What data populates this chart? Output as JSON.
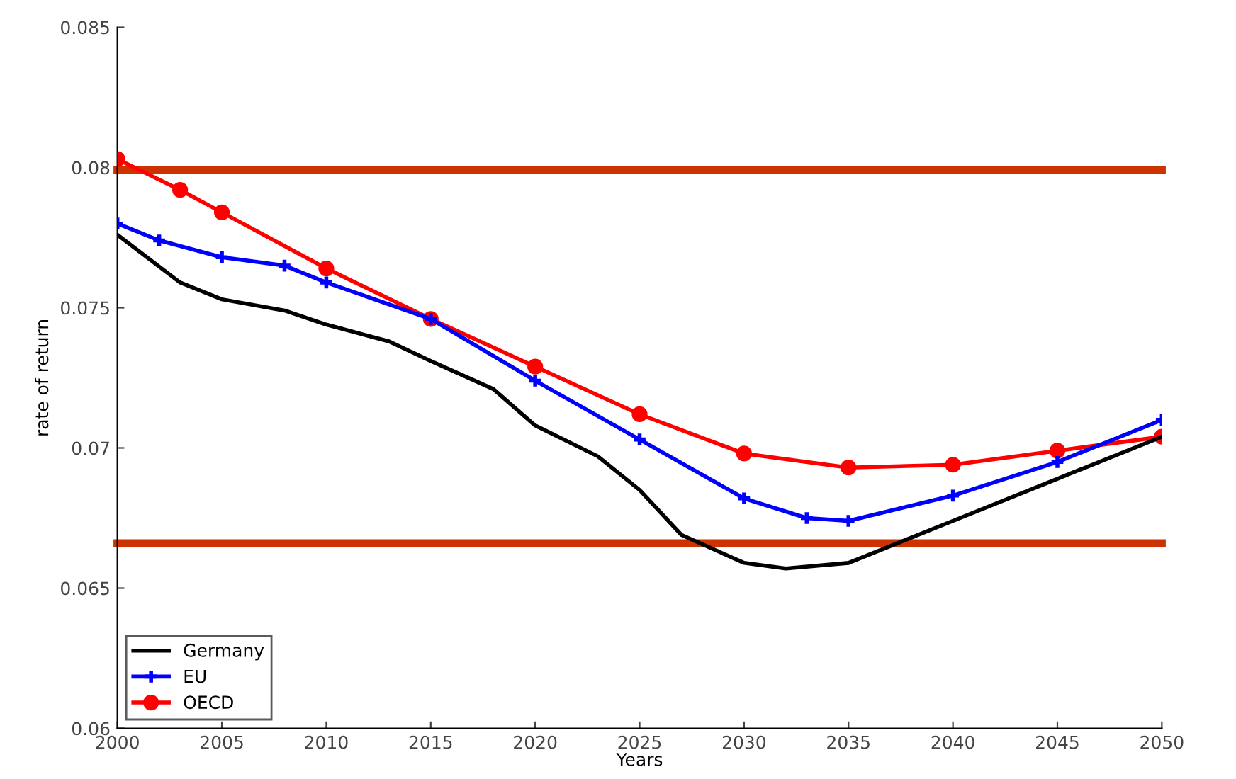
{
  "chart_data": {
    "type": "line",
    "xlabel": "Years",
    "ylabel": "rate of return",
    "xlim": [
      2000,
      2050
    ],
    "xticks": [
      2000,
      2005,
      2010,
      2015,
      2020,
      2025,
      2030,
      2035,
      2040,
      2045,
      2050
    ],
    "ylim": [
      0.06,
      0.085
    ],
    "yticks": [
      0.06,
      0.065,
      0.07,
      0.075,
      0.08,
      0.085
    ],
    "grid": false,
    "legend": "bottom left",
    "series": [
      {
        "name": "Germany",
        "color": "#000000",
        "marker": "none",
        "x": [
          2000,
          2003,
          2005,
          2008,
          2010,
          2013,
          2015,
          2018,
          2020,
          2023,
          2025,
          2027,
          2030,
          2032,
          2035,
          2037,
          2040,
          2045,
          2050
        ],
        "values": [
          0.0776,
          0.0759,
          0.0753,
          0.0749,
          0.0744,
          0.0738,
          0.0731,
          0.0721,
          0.0708,
          0.0697,
          0.0685,
          0.0669,
          0.0659,
          0.0657,
          0.0659,
          0.0665,
          0.0674,
          0.0689,
          0.0704
        ]
      },
      {
        "name": "EU",
        "color": "#0000ff",
        "marker": "cross",
        "x": [
          2000,
          2002,
          2005,
          2008,
          2010,
          2015,
          2020,
          2025,
          2030,
          2033,
          2035,
          2040,
          2045,
          2050
        ],
        "values": [
          0.078,
          0.0774,
          0.0768,
          0.0765,
          0.0759,
          0.0746,
          0.0724,
          0.0703,
          0.0682,
          0.0675,
          0.0674,
          0.0683,
          0.0695,
          0.071
        ]
      },
      {
        "name": "OECD",
        "color": "#ff0000",
        "marker": "circle",
        "x": [
          2000,
          2003,
          2005,
          2010,
          2015,
          2020,
          2025,
          2030,
          2035,
          2040,
          2045,
          2050
        ],
        "values": [
          0.0803,
          0.0792,
          0.0784,
          0.0764,
          0.0746,
          0.0729,
          0.0712,
          0.0698,
          0.0693,
          0.0694,
          0.0699,
          0.0704
        ]
      }
    ],
    "ref_lines": [
      {
        "axis": "y",
        "value": 0.0799,
        "color": "#cc3300"
      },
      {
        "axis": "y",
        "value": 0.0666,
        "color": "#cc3300"
      }
    ]
  }
}
